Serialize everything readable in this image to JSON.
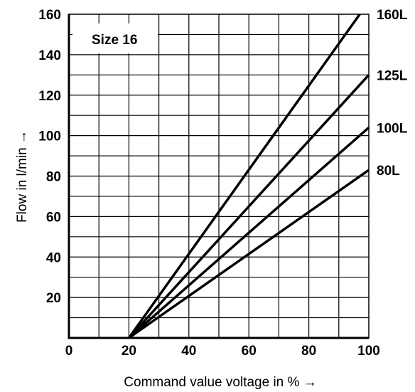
{
  "chart_data": {
    "type": "line",
    "title": "",
    "annotation": "Size 16",
    "xlabel": "Command value voltage in % →",
    "ylabel": "Flow in l/min →",
    "xlim": [
      0,
      100
    ],
    "ylim": [
      0,
      160
    ],
    "x_ticks": [
      0,
      20,
      40,
      60,
      80,
      100
    ],
    "y_ticks": [
      20,
      40,
      60,
      80,
      100,
      120,
      140,
      160
    ],
    "x_tick_labels": [
      "0",
      "20",
      "40",
      "60",
      "80",
      "100"
    ],
    "y_tick_labels": [
      "20",
      "40",
      "60",
      "80",
      "100",
      "120",
      "140",
      "160"
    ],
    "grid": true,
    "grid_x_step": 10,
    "grid_y_step": 10,
    "series": [
      {
        "name": "160L",
        "x": [
          20,
          97
        ],
        "y": [
          0,
          160
        ]
      },
      {
        "name": "125L",
        "x": [
          20,
          100
        ],
        "y": [
          0,
          130
        ]
      },
      {
        "name": "100L",
        "x": [
          20,
          100
        ],
        "y": [
          0,
          104
        ]
      },
      {
        "name": "80L",
        "x": [
          20,
          100
        ],
        "y": [
          0,
          83
        ]
      }
    ],
    "line_color": "#000000"
  }
}
